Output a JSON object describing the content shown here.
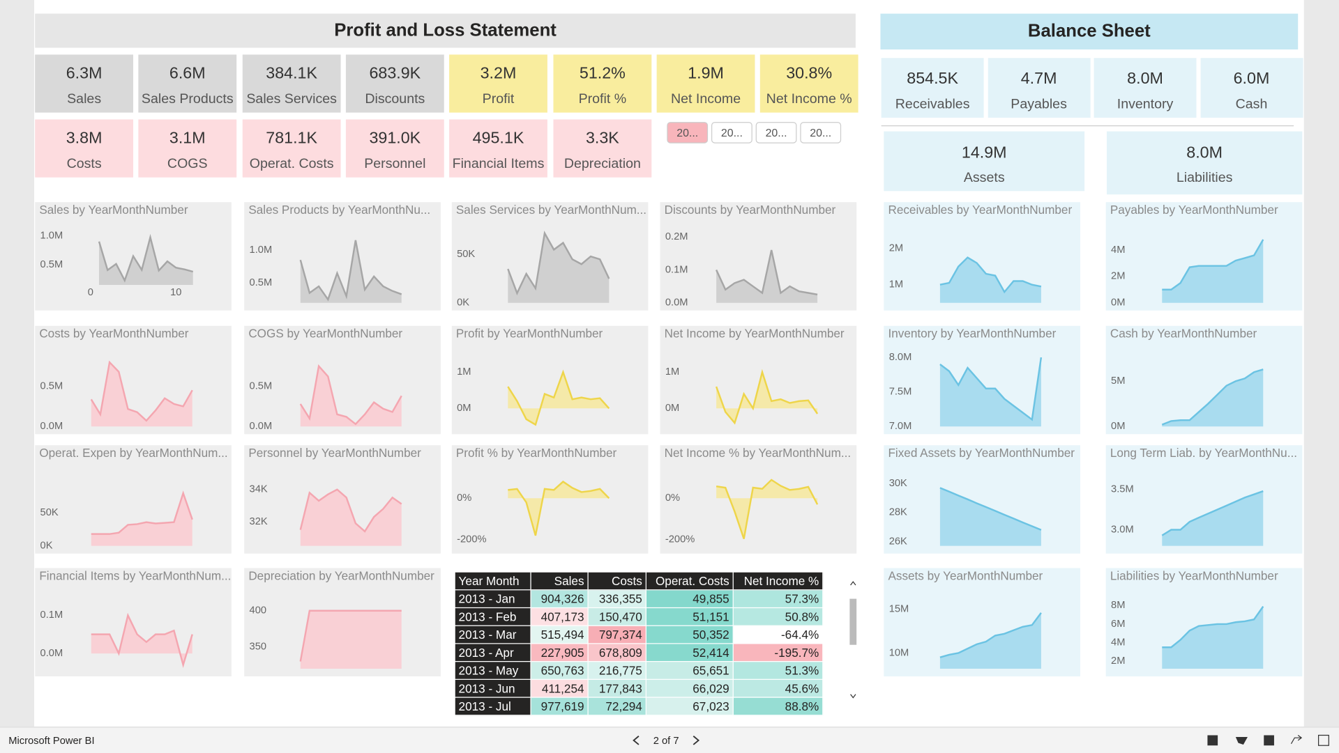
{
  "app": {
    "name": "Microsoft Power BI",
    "page": "2 of 7"
  },
  "pnl": {
    "title": "Profit and Loss Statement",
    "kpis": [
      {
        "value": "6.3M",
        "label": "Sales",
        "color": "#d9d9d9"
      },
      {
        "value": "6.6M",
        "label": "Sales Products",
        "color": "#d9d9d9"
      },
      {
        "value": "384.1K",
        "label": "Sales Services",
        "color": "#d9d9d9"
      },
      {
        "value": "683.9K",
        "label": "Discounts",
        "color": "#d9d9d9"
      },
      {
        "value": "3.2M",
        "label": "Profit",
        "color": "#f9ed9e"
      },
      {
        "value": "51.2%",
        "label": "Profit %",
        "color": "#f9ed9e"
      },
      {
        "value": "1.9M",
        "label": "Net Income",
        "color": "#f9ed9e"
      },
      {
        "value": "30.8%",
        "label": "Net Income %",
        "color": "#f9ed9e"
      },
      {
        "value": "3.8M",
        "label": "Costs",
        "color": "#fddcdf"
      },
      {
        "value": "3.1M",
        "label": "COGS",
        "color": "#fddcdf"
      },
      {
        "value": "781.1K",
        "label": "Operat. Costs",
        "color": "#fddcdf"
      },
      {
        "value": "391.0K",
        "label": "Personnel",
        "color": "#fddcdf"
      },
      {
        "value": "495.1K",
        "label": "Financial Items",
        "color": "#fddcdf"
      },
      {
        "value": "3.3K",
        "label": "Depreciation",
        "color": "#fddcdf"
      }
    ],
    "slicer": [
      {
        "label": "20...",
        "color": "#f8b5bb"
      },
      {
        "label": "20...",
        "color": "#ffffff"
      },
      {
        "label": "20...",
        "color": "#ffffff"
      },
      {
        "label": "20...",
        "color": "#ffffff"
      }
    ]
  },
  "balance": {
    "title": "Balance Sheet",
    "kpis": [
      {
        "value": "854.5K",
        "label": "Receivables"
      },
      {
        "value": "4.7M",
        "label": "Payables"
      },
      {
        "value": "8.0M",
        "label": "Inventory"
      },
      {
        "value": "6.0M",
        "label": "Cash"
      }
    ],
    "totals": [
      {
        "value": "14.9M",
        "label": "Assets"
      },
      {
        "value": "8.0M",
        "label": "Liabilities"
      }
    ]
  },
  "charts": [
    {
      "type": "area",
      "title": "Sales by YearMonthNumber",
      "color": "#a6a6a6",
      "fill": "#d0d0d0",
      "background": "#eeeeee",
      "values": [
        904326,
        407173,
        515494,
        227905,
        650763,
        411254,
        977619,
        400000,
        560000,
        450000,
        420000,
        380000
      ],
      "ylim": [
        150000,
        1100000
      ],
      "yticks": [
        {
          "value": 500000,
          "label": "0.5M"
        },
        {
          "value": 1000000,
          "label": "1.0M"
        }
      ],
      "xlim": [
        -1,
        13
      ],
      "xticks": [
        0,
        10
      ]
    },
    {
      "type": "area",
      "title": "Sales Products by YearMonthNu...",
      "color": "#a6a6a6",
      "fill": "#d0d0d0",
      "background": "#eeeeee",
      "values": [
        850000,
        350000,
        450000,
        250000,
        650000,
        300000,
        1150000,
        400000,
        600000,
        450000,
        380000,
        330000
      ],
      "ylim": [
        200000,
        1300000
      ],
      "yticks": [
        {
          "value": 500000,
          "label": "0.5M"
        },
        {
          "value": 1000000,
          "label": "1.0M"
        }
      ]
    },
    {
      "type": "area",
      "title": "Sales Services by YearMonthNum...",
      "color": "#a6a6a6",
      "fill": "#d0d0d0",
      "background": "#eeeeee",
      "values": [
        35000,
        10000,
        30000,
        15000,
        72000,
        55000,
        62000,
        45000,
        40000,
        48000,
        45000,
        25000
      ],
      "ylim": [
        0,
        75000
      ],
      "yticks": [
        {
          "value": 0,
          "label": "0K"
        },
        {
          "value": 50000,
          "label": "50K"
        }
      ]
    },
    {
      "type": "area",
      "title": "Discounts by YearMonthNumber",
      "color": "#a6a6a6",
      "fill": "#d0d0d0",
      "background": "#eeeeee",
      "values": [
        100000,
        40000,
        60000,
        70000,
        50000,
        30000,
        160000,
        30000,
        50000,
        35000,
        30000,
        25000
      ],
      "ylim": [
        0,
        220000
      ],
      "yticks": [
        {
          "value": 0,
          "label": "0.0M"
        },
        {
          "value": 100000,
          "label": "0.1M"
        },
        {
          "value": 200000,
          "label": "0.2M"
        }
      ]
    },
    {
      "type": "area",
      "title": "Receivables by YearMonthNumber",
      "color": "#6bc3e3",
      "fill": "#a9dcef",
      "background": "#e8f5fa",
      "values": [
        1000000,
        1050000,
        1500000,
        1750000,
        1600000,
        1300000,
        1250000,
        800000,
        1100000,
        1100000,
        1000000,
        950000
      ],
      "ylim": [
        500000,
        2500000
      ],
      "yticks": [
        {
          "value": 1000000,
          "label": "1M"
        },
        {
          "value": 2000000,
          "label": "2M"
        }
      ]
    },
    {
      "type": "area",
      "title": "Payables by YearMonthNumber",
      "color": "#6bc3e3",
      "fill": "#a9dcef",
      "background": "#e8f5fa",
      "values": [
        1000000,
        1000000,
        1500000,
        2700000,
        2800000,
        2800000,
        2800000,
        2800000,
        3200000,
        3400000,
        3600000,
        4800000
      ],
      "ylim": [
        0,
        5500000
      ],
      "yticks": [
        {
          "value": 0,
          "label": "0M"
        },
        {
          "value": 2000000,
          "label": "2M"
        },
        {
          "value": 4000000,
          "label": "4M"
        }
      ]
    },
    {
      "type": "area",
      "title": "Costs by YearMonthNumber",
      "color": "#f4a6b0",
      "fill": "#f9d0d5",
      "background": "#eeeeee",
      "values": [
        336355,
        150470,
        797374,
        678809,
        216775,
        177843,
        72294,
        200000,
        350000,
        280000,
        250000,
        450000
      ],
      "ylim": [
        0,
        900000
      ],
      "yticks": [
        {
          "value": 0,
          "label": "0.0M"
        },
        {
          "value": 500000,
          "label": "0.5M"
        }
      ]
    },
    {
      "type": "area",
      "title": "COGS by YearMonthNumber",
      "color": "#f4a6b0",
      "fill": "#f9d0d5",
      "background": "#eeeeee",
      "values": [
        280000,
        100000,
        750000,
        620000,
        150000,
        120000,
        30000,
        150000,
        300000,
        220000,
        180000,
        380000
      ],
      "ylim": [
        0,
        900000
      ],
      "yticks": [
        {
          "value": 0,
          "label": "0.0M"
        },
        {
          "value": 500000,
          "label": "0.5M"
        }
      ]
    },
    {
      "type": "area",
      "title": "Profit by YearMonthNumber",
      "color": "#eed54a",
      "fill": "#f5e9a9",
      "background": "#eeeeee",
      "values": [
        600000,
        200000,
        -300000,
        -450000,
        400000,
        300000,
        1000000,
        250000,
        300000,
        250000,
        280000,
        0
      ],
      "ylim": [
        -500000,
        1500000
      ],
      "yticks": [
        {
          "value": 0,
          "label": "0M"
        },
        {
          "value": 1000000,
          "label": "1M"
        }
      ]
    },
    {
      "type": "area",
      "title": "Net Income by YearMonthNumber",
      "color": "#eed54a",
      "fill": "#f5e9a9",
      "background": "#eeeeee",
      "values": [
        600000,
        -100000,
        -400000,
        400000,
        0,
        1000000,
        200000,
        250000,
        150000,
        200000,
        220000,
        -150000
      ],
      "ylim": [
        -500000,
        1500000
      ],
      "yticks": [
        {
          "value": 0,
          "label": "0M"
        },
        {
          "value": 1000000,
          "label": "1M"
        }
      ]
    },
    {
      "type": "area",
      "title": "Inventory by YearMonthNumber",
      "color": "#6bc3e3",
      "fill": "#a9dcef",
      "background": "#e8f5fa",
      "values": [
        7900000,
        7800000,
        7600000,
        7850000,
        7700000,
        7550000,
        7550000,
        7400000,
        7300000,
        7200000,
        7100000,
        8000000
      ],
      "ylim": [
        7000000,
        8050000
      ],
      "yticks": [
        {
          "value": 7000000,
          "label": "7.0M"
        },
        {
          "value": 7500000,
          "label": "7.5M"
        },
        {
          "value": 8000000,
          "label": "8.0M"
        }
      ]
    },
    {
      "type": "area",
      "title": "Cash by YearMonthNumber",
      "color": "#6bc3e3",
      "fill": "#a9dcef",
      "background": "#e8f5fa",
      "values": [
        200000,
        600000,
        700000,
        700000,
        1600000,
        2500000,
        3500000,
        4500000,
        5000000,
        5300000,
        6000000,
        6300000
      ],
      "ylim": [
        0,
        8000000
      ],
      "yticks": [
        {
          "value": 0,
          "label": "0M"
        },
        {
          "value": 5000000,
          "label": "5M"
        }
      ]
    },
    {
      "type": "area",
      "title": "Operat. Expen by YearMonthNum...",
      "color": "#f4a6b0",
      "fill": "#f9d0d5",
      "background": "#eeeeee",
      "values": [
        18000,
        18000,
        18000,
        20000,
        32000,
        33000,
        36000,
        34000,
        35000,
        36000,
        80000,
        40000
      ],
      "ylim": [
        0,
        110000
      ],
      "yticks": [
        {
          "value": 0,
          "label": "0K"
        },
        {
          "value": 50000,
          "label": "50K"
        }
      ]
    },
    {
      "type": "area",
      "title": "Personnel by YearMonthNumber",
      "color": "#f4a6b0",
      "fill": "#f9d0d5",
      "background": "#eeeeee",
      "values": [
        31500,
        33800,
        33300,
        33700,
        34000,
        33500,
        31900,
        31400,
        32300,
        32800,
        33500,
        33100
      ],
      "ylim": [
        30500,
        35000
      ],
      "yticks": [
        {
          "value": 32000,
          "label": "32K"
        },
        {
          "value": 34000,
          "label": "34K"
        }
      ]
    },
    {
      "type": "area",
      "title": "Profit % by YearMonthNumber",
      "color": "#eed54a",
      "fill": "#f5e9a9",
      "background": "#eeeeee",
      "values": [
        40,
        45,
        -20,
        -180,
        45,
        40,
        80,
        50,
        30,
        35,
        45,
        0
      ],
      "ylim": [
        -230,
        120
      ],
      "yticks": [
        {
          "value": -200,
          "label": "-200%"
        },
        {
          "value": 0,
          "label": "0%"
        }
      ]
    },
    {
      "type": "area",
      "title": "Net Income % by YearMonthNum...",
      "color": "#eed54a",
      "fill": "#f5e9a9",
      "background": "#eeeeee",
      "values": [
        57.3,
        50.8,
        -64.4,
        -195.7,
        51.3,
        45.6,
        88.8,
        60,
        40,
        45,
        55,
        -30
      ],
      "ylim": [
        -230,
        120
      ],
      "yticks": [
        {
          "value": -200,
          "label": "-200%"
        },
        {
          "value": 0,
          "label": "0%"
        }
      ]
    },
    {
      "type": "area",
      "title": "Fixed Assets by YearMonthNumber",
      "color": "#6bc3e3",
      "fill": "#a9dcef",
      "background": "#e8f5fa",
      "values": [
        29700,
        29440,
        29170,
        28910,
        28640,
        28380,
        28120,
        27850,
        27590,
        27320,
        27060,
        26800
      ],
      "ylim": [
        25700,
        30700
      ],
      "yticks": [
        {
          "value": 26000,
          "label": "26K"
        },
        {
          "value": 28000,
          "label": "28K"
        },
        {
          "value": 30000,
          "label": "30K"
        }
      ]
    },
    {
      "type": "area",
      "title": "Long Term Liab. by YearMonthNu...",
      "color": "#6bc3e3",
      "fill": "#a9dcef",
      "background": "#e8f5fa",
      "values": [
        2930000,
        3000000,
        3000000,
        3100000,
        3150000,
        3200000,
        3250000,
        3300000,
        3350000,
        3400000,
        3440000,
        3480000
      ],
      "ylim": [
        2800000,
        3700000
      ],
      "yticks": [
        {
          "value": 3000000,
          "label": "3.0M"
        },
        {
          "value": 3500000,
          "label": "3.5M"
        }
      ]
    },
    {
      "type": "area",
      "title": "Financial Items by YearMonthNum...",
      "color": "#f4a6b0",
      "fill": "#f9d0d5",
      "background": "#eeeeee",
      "values": [
        50000,
        50000,
        50000,
        0,
        100000,
        50000,
        30000,
        50000,
        50000,
        60000,
        -30000,
        50000
      ],
      "ylim": [
        -40000,
        150000
      ],
      "yticks": [
        {
          "value": 0,
          "label": "0.0M"
        },
        {
          "value": 100000,
          "label": "0.1M"
        }
      ]
    },
    {
      "type": "area",
      "title": "Depreciation by YearMonthNumber",
      "color": "#f4a6b0",
      "fill": "#f9d0d5",
      "background": "#eeeeee",
      "values": [
        330,
        400,
        400,
        400,
        400,
        400,
        400,
        400,
        400,
        400,
        400,
        400
      ],
      "ylim": [
        320,
        420
      ],
      "yticks": [
        {
          "value": 350,
          "label": "350"
        },
        {
          "value": 400,
          "label": "400"
        }
      ]
    },
    {
      "type": "area",
      "title": "Assets by YearMonthNumber",
      "color": "#6bc3e3",
      "fill": "#a9dcef",
      "background": "#e8f5fa",
      "values": [
        9500000,
        9800000,
        10000000,
        10500000,
        11000000,
        11300000,
        12000000,
        12200000,
        12600000,
        13000000,
        13200000,
        14600000
      ],
      "ylim": [
        8200000,
        16500000
      ],
      "yticks": [
        {
          "value": 10000000,
          "label": "10M"
        },
        {
          "value": 15000000,
          "label": "15M"
        }
      ]
    },
    {
      "type": "area",
      "title": "Liabilities by YearMonthNumber",
      "color": "#6bc3e3",
      "fill": "#a9dcef",
      "background": "#e8f5fa",
      "values": [
        3500000,
        3500000,
        4300000,
        5300000,
        5800000,
        5900000,
        6000000,
        6000000,
        6200000,
        6300000,
        6500000,
        7900000
      ],
      "ylim": [
        1200000,
        9000000
      ],
      "yticks": [
        {
          "value": 2000000,
          "label": "2M"
        },
        {
          "value": 4000000,
          "label": "4M"
        },
        {
          "value": 6000000,
          "label": "6M"
        },
        {
          "value": 8000000,
          "label": "8M"
        }
      ]
    }
  ],
  "table": {
    "columns": [
      "Year Month",
      "Sales",
      "Costs",
      "Operat. Costs",
      "Net Income %"
    ],
    "rows": [
      [
        "2013 - Jan",
        "904,326",
        "336,355",
        "49,855",
        "57.3%"
      ],
      [
        "2013 - Feb",
        "407,173",
        "150,470",
        "51,151",
        "50.8%"
      ],
      [
        "2013 - Mar",
        "515,494",
        "797,374",
        "50,352",
        "-64.4%"
      ],
      [
        "2013 - Apr",
        "227,905",
        "678,809",
        "52,414",
        "-195.7%"
      ],
      [
        "2013 - May",
        "650,763",
        "216,775",
        "65,651",
        "51.3%"
      ],
      [
        "2013 - Jun",
        "411,254",
        "177,843",
        "66,029",
        "45.6%"
      ],
      [
        "2013 - Jul",
        "977,619",
        "72,294",
        "67,023",
        "88.8%"
      ]
    ],
    "cell_colors": [
      [
        "#b3e6e0",
        "#d8f2ee",
        "#84d8cc",
        "#aee6de"
      ],
      [
        "#fde0e3",
        "#c8ece6",
        "#86d9cd",
        "#b6e8e1"
      ],
      [
        "#e3f5f1",
        "#f7aeb5",
        "#86d9cd",
        "#ffffff"
      ],
      [
        "#f9b9bf",
        "#f9c5ca",
        "#87d9cd",
        "#f9b6bc"
      ],
      [
        "#cdeee8",
        "#d8f2ee",
        "#c7ece6",
        "#b3e7e0"
      ],
      [
        "#fcdde0",
        "#c5ebe5",
        "#cceee9",
        "#bce9e3"
      ],
      [
        "#a5e2da",
        "#a9e3db",
        "#d7f1ed",
        "#96ddd3"
      ]
    ]
  }
}
